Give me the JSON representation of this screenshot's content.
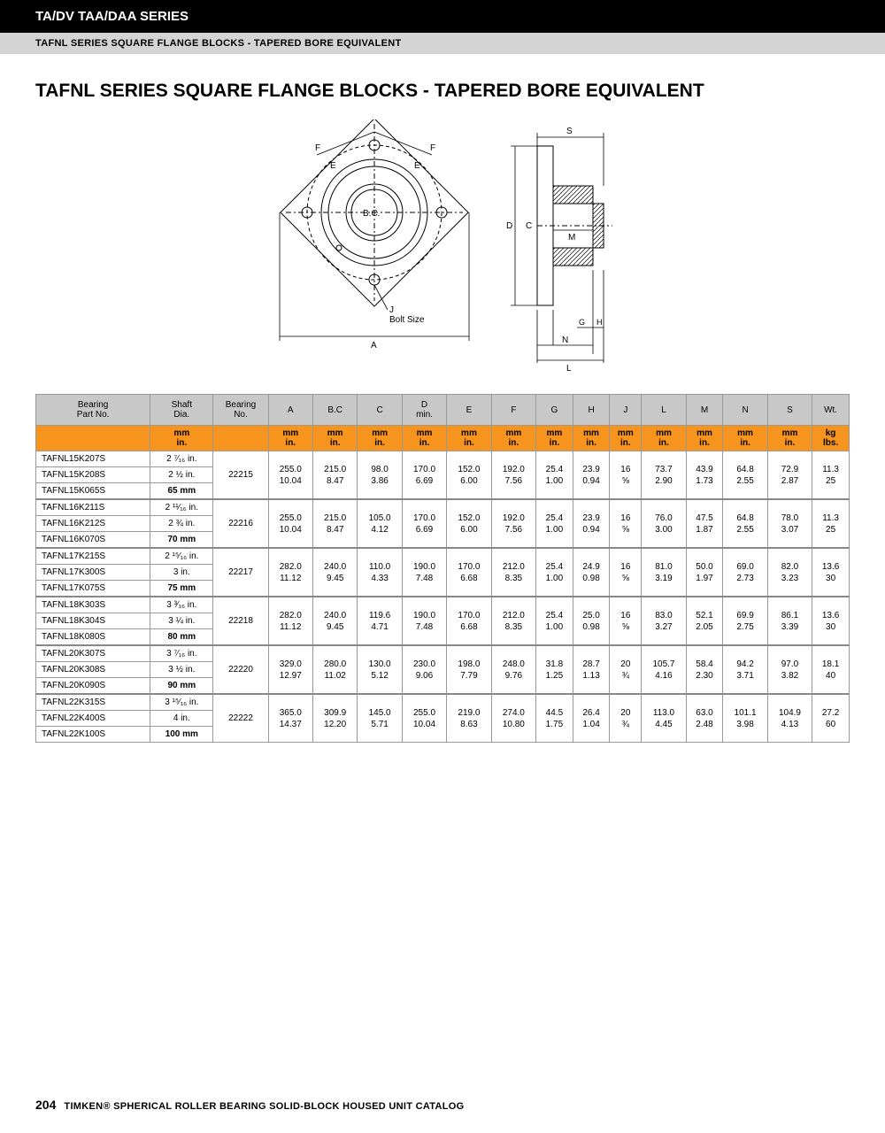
{
  "header": {
    "series_line": "TA/DV TAA/DAA SERIES",
    "subheader": "TAFNL SERIES SQUARE FLANGE BLOCKS - TAPERED BORE EQUIVALENT",
    "title": "TAFNL SERIES SQUARE FLANGE BLOCKS - TAPERED BORE EQUIVALENT"
  },
  "diagram_labels": {
    "F": "F",
    "E": "E",
    "BC": "B.C.",
    "J": "J",
    "bolt": "Bolt Size",
    "A": "A",
    "S": "S",
    "D": "D",
    "C": "C",
    "M": "M",
    "G": "G",
    "H": "H",
    "N": "N",
    "L": "L"
  },
  "columns": [
    "Bearing\nPart No.",
    "Shaft\nDia.",
    "Bearing\nNo.",
    "A",
    "B.C",
    "C",
    "D\nmin.",
    "E",
    "F",
    "G",
    "H",
    "J",
    "L",
    "M",
    "N",
    "S",
    "Wt."
  ],
  "unit_row": [
    "",
    "mm\nin.",
    "",
    "mm\nin.",
    "mm\nin.",
    "mm\nin.",
    "mm\nin.",
    "mm\nin.",
    "mm\nin.",
    "mm\nin.",
    "mm\nin.",
    "mm\nin.",
    "mm\nin.",
    "mm\nin.",
    "mm\nin.",
    "mm\nin.",
    "kg\nlbs."
  ],
  "groups": [
    {
      "parts": [
        {
          "pn": "TAFNL15K207S",
          "shaft": "2 ⁷⁄₁₆ in."
        },
        {
          "pn": "TAFNL15K208S",
          "shaft": "2 ½ in."
        },
        {
          "pn": "TAFNL15K065S",
          "shaft": "65 mm",
          "bold": true
        }
      ],
      "brg": "22215",
      "dims": {
        "A": "255.0\n10.04",
        "BC": "215.0\n8.47",
        "C": "98.0\n3.86",
        "D": "170.0\n6.69",
        "E": "152.0\n6.00",
        "F": "192.0\n7.56",
        "G": "25.4\n1.00",
        "H": "23.9\n0.94",
        "J": "16\n⅝",
        "L": "73.7\n2.90",
        "M": "43.9\n1.73",
        "N": "64.8\n2.55",
        "S": "72.9\n2.87",
        "Wt": "11.3\n25"
      }
    },
    {
      "parts": [
        {
          "pn": "TAFNL16K211S",
          "shaft": "2 ¹¹⁄₁₆ in."
        },
        {
          "pn": "TAFNL16K212S",
          "shaft": "2 ¾ in."
        },
        {
          "pn": "TAFNL16K070S",
          "shaft": "70 mm",
          "bold": true
        }
      ],
      "brg": "22216",
      "dims": {
        "A": "255.0\n10.04",
        "BC": "215.0\n8.47",
        "C": "105.0\n4.12",
        "D": "170.0\n6.69",
        "E": "152.0\n6.00",
        "F": "192.0\n7.56",
        "G": "25.4\n1.00",
        "H": "23.9\n0.94",
        "J": "16\n⅝",
        "L": "76.0\n3.00",
        "M": "47.5\n1.87",
        "N": "64.8\n2.55",
        "S": "78.0\n3.07",
        "Wt": "11.3\n25"
      }
    },
    {
      "parts": [
        {
          "pn": "TAFNL17K215S",
          "shaft": "2 ¹⁵⁄₁₆ in."
        },
        {
          "pn": "TAFNL17K300S",
          "shaft": "3 in."
        },
        {
          "pn": "TAFNL17K075S",
          "shaft": "75 mm",
          "bold": true
        }
      ],
      "brg": "22217",
      "dims": {
        "A": "282.0\n11.12",
        "BC": "240.0\n9.45",
        "C": "110.0\n4.33",
        "D": "190.0\n7.48",
        "E": "170.0\n6.68",
        "F": "212.0\n8.35",
        "G": "25.4\n1.00",
        "H": "24.9\n0.98",
        "J": "16\n⅝",
        "L": "81.0\n3.19",
        "M": "50.0\n1.97",
        "N": "69.0\n2.73",
        "S": "82.0\n3.23",
        "Wt": "13.6\n30"
      }
    },
    {
      "parts": [
        {
          "pn": "TAFNL18K303S",
          "shaft": "3 ³⁄₁₆ in."
        },
        {
          "pn": "TAFNL18K304S",
          "shaft": "3 ¼ in."
        },
        {
          "pn": "TAFNL18K080S",
          "shaft": "80 mm",
          "bold": true
        }
      ],
      "brg": "22218",
      "dims": {
        "A": "282.0\n11.12",
        "BC": "240.0\n9.45",
        "C": "119.6\n4.71",
        "D": "190.0\n7.48",
        "E": "170.0\n6.68",
        "F": "212.0\n8.35",
        "G": "25.4\n1.00",
        "H": "25.0\n0.98",
        "J": "16\n⅝",
        "L": "83.0\n3.27",
        "M": "52.1\n2.05",
        "N": "69.9\n2.75",
        "S": "86.1\n3.39",
        "Wt": "13.6\n30"
      }
    },
    {
      "parts": [
        {
          "pn": "TAFNL20K307S",
          "shaft": "3 ⁷⁄₁₆ in."
        },
        {
          "pn": "TAFNL20K308S",
          "shaft": "3 ½ in."
        },
        {
          "pn": "TAFNL20K090S",
          "shaft": "90 mm",
          "bold": true
        }
      ],
      "brg": "22220",
      "dims": {
        "A": "329.0\n12.97",
        "BC": "280.0\n11.02",
        "C": "130.0\n5.12",
        "D": "230.0\n9.06",
        "E": "198.0\n7.79",
        "F": "248.0\n9.76",
        "G": "31.8\n1.25",
        "H": "28.7\n1.13",
        "J": "20\n¾",
        "L": "105.7\n4.16",
        "M": "58.4\n2.30",
        "N": "94.2\n3.71",
        "S": "97.0\n3.82",
        "Wt": "18.1\n40"
      }
    },
    {
      "parts": [
        {
          "pn": "TAFNL22K315S",
          "shaft": "3 ¹⁵⁄₁₆ in."
        },
        {
          "pn": "TAFNL22K400S",
          "shaft": "4 in."
        },
        {
          "pn": "TAFNL22K100S",
          "shaft": "100 mm",
          "bold": true
        }
      ],
      "brg": "22222",
      "dims": {
        "A": "365.0\n14.37",
        "BC": "309.9\n12.20",
        "C": "145.0\n5.71",
        "D": "255.0\n10.04",
        "E": "219.0\n8.63",
        "F": "274.0\n10.80",
        "G": "44.5\n1.75",
        "H": "26.4\n1.04",
        "J": "20\n¾",
        "L": "113.0\n4.45",
        "M": "63.0\n2.48",
        "N": "101.1\n3.98",
        "S": "104.9\n4.13",
        "Wt": "27.2\n60"
      }
    }
  ],
  "footer": {
    "page": "204",
    "catalog": "TIMKEN® SPHERICAL ROLLER BEARING SOLID-BLOCK HOUSED UNIT CATALOG"
  }
}
